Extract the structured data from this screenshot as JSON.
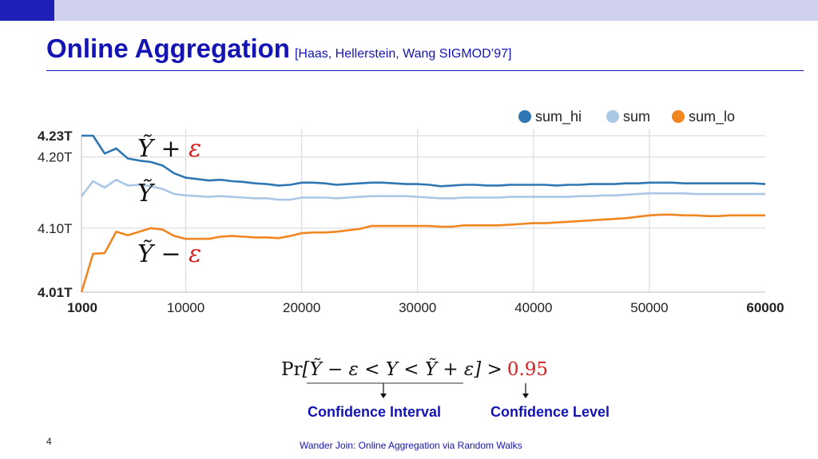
{
  "slide": {
    "title": "Online Aggregation",
    "reference": "[Haas, Hellerstein, Wang SIGMOD’97]",
    "page_number": "4",
    "footer": "Wander Join: Online Aggregation via Random Walks"
  },
  "formula": {
    "pr": "Pr",
    "expression": "[Ỹ − ε < Y < Ỹ + ε] >",
    "level": "0.95",
    "interval_label": "Confidence Interval",
    "level_label": "Confidence Level"
  },
  "chart_labels": {
    "upper": "Ỹ + ε",
    "mid": "Ỹ",
    "lower": "Ỹ − ε"
  },
  "colors": {
    "brand": "#1414b4",
    "sum_hi": "#2f77b2",
    "sum": "#aac7e6",
    "sum_lo": "#f18620",
    "epsilon": "#d61f1f"
  },
  "chart_data": {
    "type": "line",
    "x": [
      1000,
      2000,
      3000,
      4000,
      5000,
      6000,
      7000,
      8000,
      9000,
      10000,
      11000,
      12000,
      13000,
      14000,
      15000,
      16000,
      17000,
      18000,
      19000,
      20000,
      21000,
      22000,
      23000,
      24000,
      25000,
      26000,
      27000,
      28000,
      29000,
      30000,
      31000,
      32000,
      33000,
      34000,
      35000,
      36000,
      37000,
      38000,
      39000,
      40000,
      41000,
      42000,
      43000,
      44000,
      45000,
      46000,
      47000,
      48000,
      49000,
      50000,
      51000,
      52000,
      53000,
      54000,
      55000,
      56000,
      57000,
      58000,
      59000,
      60000
    ],
    "series": [
      {
        "name": "sum_hi",
        "values": [
          4.23,
          4.23,
          4.205,
          4.212,
          4.198,
          4.195,
          4.193,
          4.188,
          4.177,
          4.171,
          4.169,
          4.167,
          4.168,
          4.166,
          4.165,
          4.163,
          4.162,
          4.16,
          4.161,
          4.164,
          4.164,
          4.163,
          4.161,
          4.162,
          4.163,
          4.164,
          4.164,
          4.163,
          4.162,
          4.162,
          4.161,
          4.159,
          4.16,
          4.161,
          4.161,
          4.16,
          4.16,
          4.161,
          4.161,
          4.161,
          4.161,
          4.16,
          4.161,
          4.161,
          4.162,
          4.162,
          4.162,
          4.163,
          4.163,
          4.164,
          4.164,
          4.164,
          4.163,
          4.163,
          4.163,
          4.163,
          4.163,
          4.163,
          4.163,
          4.162
        ]
      },
      {
        "name": "sum",
        "values": [
          4.145,
          4.166,
          4.157,
          4.168,
          4.16,
          4.161,
          4.159,
          4.155,
          4.148,
          4.146,
          4.145,
          4.144,
          4.145,
          4.144,
          4.143,
          4.142,
          4.142,
          4.14,
          4.14,
          4.143,
          4.143,
          4.143,
          4.142,
          4.143,
          4.144,
          4.145,
          4.145,
          4.145,
          4.145,
          4.144,
          4.143,
          4.142,
          4.142,
          4.143,
          4.143,
          4.143,
          4.143,
          4.144,
          4.144,
          4.144,
          4.144,
          4.144,
          4.144,
          4.145,
          4.145,
          4.146,
          4.146,
          4.147,
          4.148,
          4.149,
          4.149,
          4.149,
          4.149,
          4.148,
          4.148,
          4.148,
          4.148,
          4.148,
          4.148,
          4.148
        ]
      },
      {
        "name": "sum_lo",
        "values": [
          4.01,
          4.064,
          4.065,
          4.095,
          4.09,
          4.095,
          4.1,
          4.098,
          4.089,
          4.085,
          4.085,
          4.085,
          4.088,
          4.089,
          4.088,
          4.087,
          4.087,
          4.086,
          4.089,
          4.093,
          4.094,
          4.094,
          4.095,
          4.097,
          4.099,
          4.103,
          4.103,
          4.103,
          4.103,
          4.103,
          4.103,
          4.102,
          4.102,
          4.104,
          4.104,
          4.104,
          4.104,
          4.105,
          4.106,
          4.107,
          4.107,
          4.108,
          4.109,
          4.11,
          4.111,
          4.112,
          4.113,
          4.114,
          4.116,
          4.118,
          4.119,
          4.119,
          4.118,
          4.118,
          4.117,
          4.117,
          4.118,
          4.118,
          4.118,
          4.118
        ]
      }
    ],
    "x_ticks": [
      "1000",
      "10000",
      "20000",
      "30000",
      "40000",
      "50000",
      "60000"
    ],
    "x_tick_values": [
      1000,
      10000,
      20000,
      30000,
      40000,
      50000,
      60000
    ],
    "y_ticks": [
      "4.23T",
      "4.20T",
      "4.10T",
      "4.01T"
    ],
    "y_tick_values": [
      4.23,
      4.2,
      4.1,
      4.01
    ],
    "xlim": [
      1000,
      60000
    ],
    "ylim": [
      4.01,
      4.23
    ],
    "grid": true,
    "legend_position": "top-right"
  }
}
